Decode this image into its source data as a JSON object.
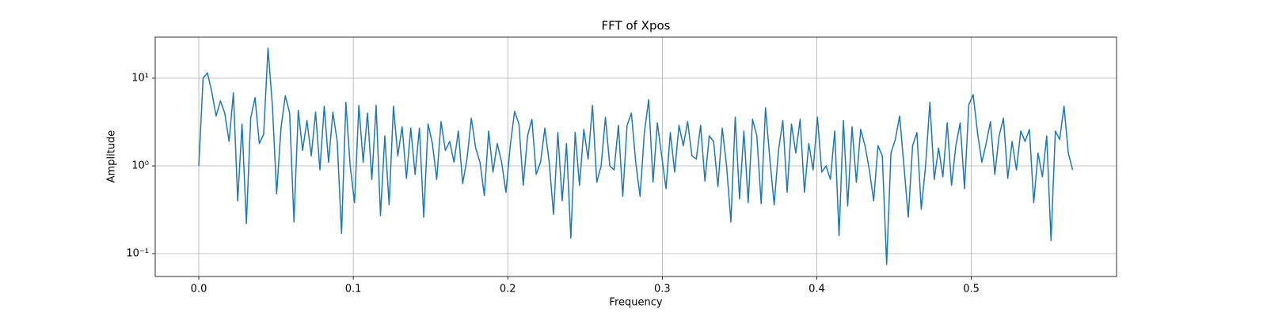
{
  "chart_data": {
    "type": "line",
    "title": "FFT of Xpos",
    "x_label": "Frequency",
    "y_label": "Amplitude",
    "color": "#1f77b4",
    "grid": true,
    "y_scale": "log",
    "xlim": [
      -0.0282,
      0.594
    ],
    "ylim": [
      0.0548,
      29.4
    ],
    "xticks": [
      {
        "value": 0,
        "label": "0.0"
      },
      {
        "value": 0.1,
        "label": "0.1"
      },
      {
        "value": 0.2,
        "label": "0.2"
      },
      {
        "value": 0.3,
        "label": "0.3"
      },
      {
        "value": 0.4,
        "label": "0.4"
      },
      {
        "value": 0.5,
        "label": "0.5"
      }
    ],
    "yticks": [
      {
        "value": 0.1,
        "label": "10⁻¹"
      },
      {
        "value": 1,
        "label": "10⁰"
      },
      {
        "value": 10,
        "label": "10¹"
      }
    ],
    "x": [
      0,
      0.0028,
      0.0056,
      0.0084,
      0.0112,
      0.014,
      0.0168,
      0.0196,
      0.0224,
      0.0252,
      0.028,
      0.0308,
      0.0336,
      0.0364,
      0.0392,
      0.042,
      0.0448,
      0.0476,
      0.0504,
      0.0532,
      0.056,
      0.0588,
      0.0616,
      0.0644,
      0.0672,
      0.07,
      0.0728,
      0.0756,
      0.0784,
      0.0812,
      0.084,
      0.0868,
      0.0896,
      0.0924,
      0.0952,
      0.098,
      0.1008,
      0.1036,
      0.1064,
      0.1092,
      0.112,
      0.1148,
      0.1176,
      0.1204,
      0.1232,
      0.126,
      0.1288,
      0.1316,
      0.1344,
      0.1372,
      0.14,
      0.1428,
      0.1456,
      0.1484,
      0.1512,
      0.154,
      0.1568,
      0.1596,
      0.1624,
      0.1652,
      0.168,
      0.1708,
      0.1736,
      0.1764,
      0.1792,
      0.182,
      0.1848,
      0.1876,
      0.1904,
      0.1932,
      0.196,
      0.1988,
      0.2016,
      0.2044,
      0.2072,
      0.21,
      0.2128,
      0.2156,
      0.2184,
      0.2212,
      0.224,
      0.2268,
      0.2296,
      0.2324,
      0.2352,
      0.238,
      0.2408,
      0.2436,
      0.2464,
      0.2492,
      0.252,
      0.2548,
      0.2576,
      0.2604,
      0.2632,
      0.266,
      0.2688,
      0.2716,
      0.2744,
      0.2772,
      0.28,
      0.2828,
      0.2856,
      0.2884,
      0.2912,
      0.294,
      0.2968,
      0.2996,
      0.3024,
      0.3052,
      0.308,
      0.3108,
      0.3136,
      0.3164,
      0.3192,
      0.322,
      0.3248,
      0.3276,
      0.3304,
      0.3332,
      0.336,
      0.3388,
      0.3416,
      0.3444,
      0.3472,
      0.35,
      0.3528,
      0.3556,
      0.3584,
      0.3612,
      0.364,
      0.3668,
      0.3696,
      0.3724,
      0.3752,
      0.378,
      0.3808,
      0.3836,
      0.3864,
      0.3892,
      0.392,
      0.3948,
      0.3976,
      0.4004,
      0.4032,
      0.406,
      0.4088,
      0.4116,
      0.4144,
      0.4172,
      0.42,
      0.4228,
      0.4256,
      0.4284,
      0.4312,
      0.434,
      0.4368,
      0.4396,
      0.4424,
      0.4452,
      0.448,
      0.4508,
      0.4536,
      0.4564,
      0.4592,
      0.462,
      0.4648,
      0.4676,
      0.4704,
      0.4732,
      0.476,
      0.4788,
      0.4816,
      0.4844,
      0.4872,
      0.49,
      0.4928,
      0.4956,
      0.4984,
      0.5012,
      0.504,
      0.5068,
      0.5096,
      0.5124,
      0.5152,
      0.518,
      0.5208,
      0.5236,
      0.5264,
      0.5292,
      0.532,
      0.5348,
      0.5376,
      0.5404,
      0.5432,
      0.546,
      0.5488,
      0.5516,
      0.5544,
      0.5572,
      0.56,
      0.5628,
      0.5656
    ],
    "values": [
      1.0,
      10,
      11.5,
      7,
      3.7,
      5.5,
      4,
      1.9,
      6.8,
      0.4,
      3,
      0.22,
      3.5,
      6,
      1.8,
      2.3,
      22,
      5,
      0.48,
      2.7,
      6.3,
      4,
      0.23,
      4.3,
      1.5,
      3.3,
      1.3,
      4.1,
      0.9,
      4.8,
      1.1,
      4.1,
      1.9,
      0.17,
      5.3,
      1,
      0.38,
      4.9,
      1.1,
      4,
      0.7,
      4.9,
      0.27,
      2.2,
      0.36,
      4.8,
      1.3,
      2.8,
      0.72,
      2.7,
      0.8,
      2.7,
      0.26,
      3,
      1.8,
      0.7,
      3.2,
      1.5,
      1.9,
      1.1,
      2.5,
      0.63,
      1.2,
      3.5,
      1.6,
      1.1,
      0.46,
      2.5,
      0.85,
      1.8,
      1.1,
      0.5,
      1.7,
      4.2,
      3,
      0.6,
      2.2,
      3.4,
      0.8,
      1.1,
      2.7,
      1.1,
      0.28,
      2.4,
      0.4,
      1.8,
      0.15,
      2.4,
      0.6,
      2.6,
      1.2,
      4.9,
      0.65,
      1,
      3.6,
      1,
      0.9,
      2.9,
      0.45,
      2.9,
      4,
      1.1,
      0.45,
      2.4,
      5.7,
      0.65,
      3.1,
      1.3,
      0.55,
      2.4,
      0.85,
      2.9,
      1.7,
      3.2,
      1.3,
      1.2,
      2.9,
      0.67,
      2.2,
      1.9,
      0.58,
      2.7,
      1,
      0.23,
      3.6,
      0.42,
      2.5,
      0.38,
      3.4,
      2.2,
      0.37,
      4.6,
      1.2,
      0.36,
      1.5,
      3.3,
      0.5,
      3,
      1.4,
      3.4,
      0.5,
      1.8,
      0.9,
      3.6,
      0.85,
      1,
      0.7,
      2.5,
      0.16,
      3.3,
      0.35,
      2.8,
      0.65,
      2.6,
      1.7,
      0.9,
      0.4,
      1.7,
      1.3,
      0.075,
      1.4,
      2,
      3.7,
      1,
      0.26,
      1.7,
      2.4,
      0.32,
      1,
      5.3,
      0.7,
      1.6,
      0.75,
      3.1,
      0.6,
      1.7,
      3.1,
      0.55,
      5,
      6.5,
      2.4,
      1.1,
      1.8,
      3.2,
      0.8,
      2.2,
      3.5,
      0.72,
      1.9,
      0.9,
      2.5,
      1.9,
      2.6,
      0.38,
      1.4,
      0.75,
      2.2,
      0.14,
      2.5,
      2.0,
      4.8,
      1.4,
      0.9
    ]
  }
}
